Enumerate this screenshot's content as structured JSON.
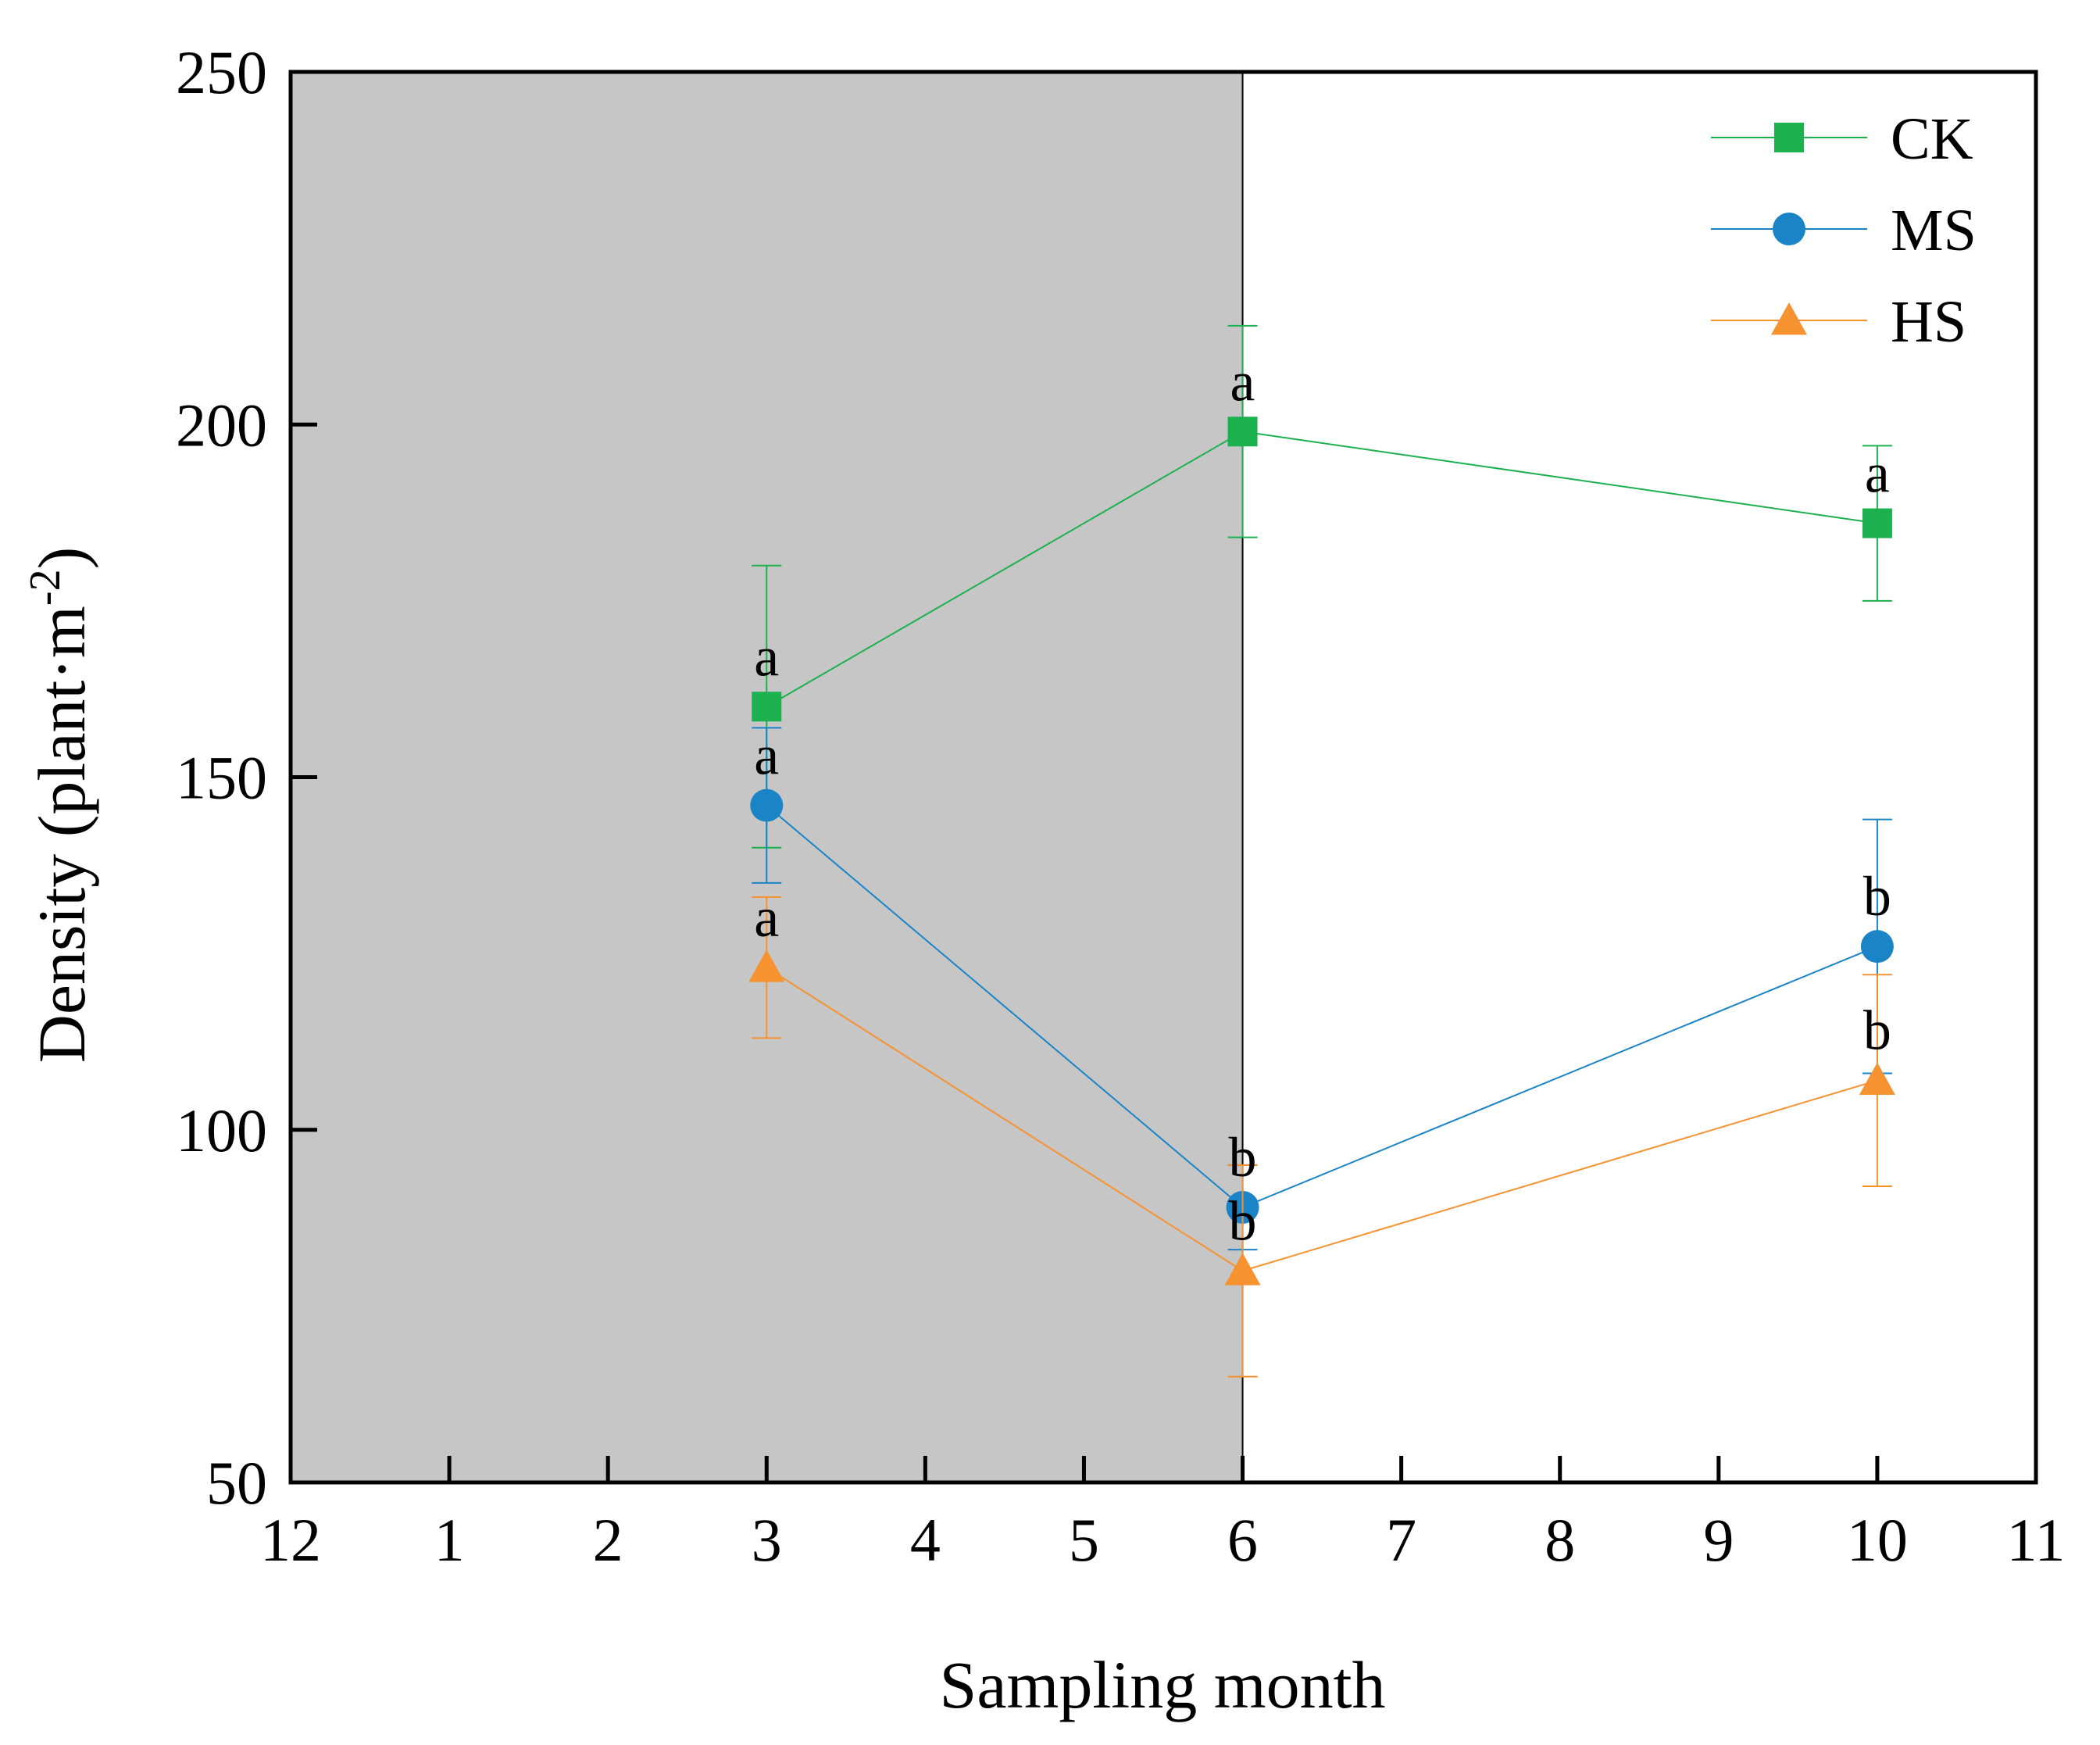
{
  "chart_data": {
    "type": "line",
    "title": "",
    "xlabel": "Sampling month",
    "ylabel_main": "Density (plant·m",
    "ylabel_sup": "-2",
    "ylabel_close": ")",
    "ylim": [
      50,
      250
    ],
    "yticks": [
      50,
      100,
      150,
      200,
      250
    ],
    "x_tick_labels": [
      "12",
      "1",
      "2",
      "3",
      "4",
      "5",
      "6",
      "7",
      "8",
      "9",
      "10",
      "11"
    ],
    "shaded_region": {
      "from_index": 0,
      "to_index": 6,
      "color": "#c6c6c6"
    },
    "x": [
      "3",
      "6",
      "10"
    ],
    "x_index": [
      3,
      6,
      10
    ],
    "series": [
      {
        "name": "CK",
        "color": "#1db04f",
        "marker": "square",
        "values": [
          160,
          199,
          186
        ],
        "errors": [
          20,
          15,
          11
        ],
        "letters": [
          "a",
          "a",
          "a"
        ]
      },
      {
        "name": "MS",
        "color": "#1a84c7",
        "marker": "circle",
        "values": [
          146,
          89,
          126
        ],
        "errors": [
          11,
          6,
          18
        ],
        "letters": [
          "a",
          "b",
          "b"
        ]
      },
      {
        "name": "HS",
        "color": "#f6922f",
        "marker": "triangle",
        "values": [
          123,
          80,
          107
        ],
        "errors": [
          10,
          15,
          15
        ],
        "letters": [
          "a",
          "b",
          "b"
        ]
      }
    ],
    "legend": {
      "placement": "top-right",
      "entries": [
        "CK",
        "MS",
        "HS"
      ]
    }
  }
}
